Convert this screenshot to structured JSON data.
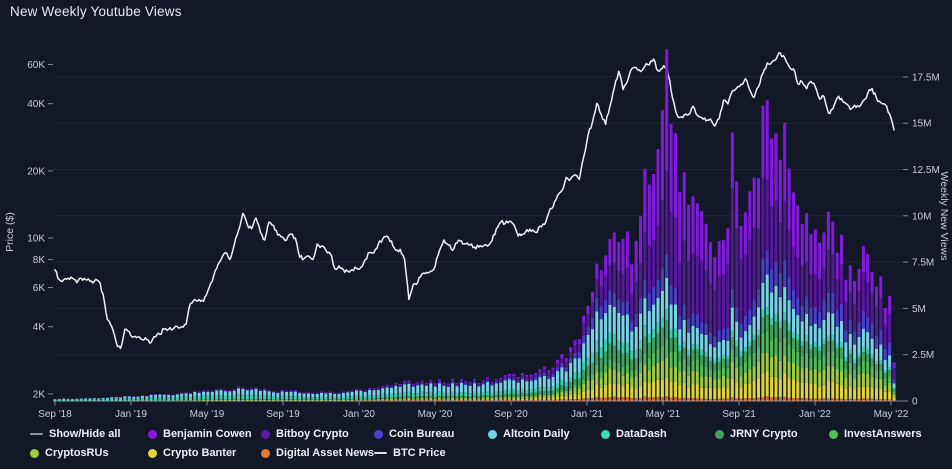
{
  "title": "New Weekly Youtube Views",
  "legend": {
    "rows": [
      [
        {
          "label": "Show/Hide all",
          "swatch": "dash",
          "color": "#8d93a5"
        },
        {
          "label": "Benjamin Cowen",
          "swatch": "dot",
          "color": "#8b15e0"
        },
        {
          "label": "Bitboy Crypto",
          "swatch": "dot",
          "color": "#5a17a5"
        },
        {
          "label": "Coin Bureau",
          "swatch": "dot",
          "color": "#4a3ed2"
        },
        {
          "label": "Altcoin Daily",
          "swatch": "dot",
          "color": "#72d3e8"
        },
        {
          "label": "DataDash",
          "swatch": "dot",
          "color": "#3bd9b5"
        },
        {
          "label": "JRNY Crypto",
          "swatch": "dot",
          "color": "#3fa35a"
        },
        {
          "label": "InvestAnswers",
          "swatch": "dot",
          "color": "#50c055"
        }
      ],
      [
        {
          "label": "CryptosRUs",
          "swatch": "dot",
          "color": "#9ecb3e"
        },
        {
          "label": "Crypto Banter",
          "swatch": "dot",
          "color": "#e2d53c"
        },
        {
          "label": "Digital Asset News",
          "swatch": "dot",
          "color": "#e07b31"
        },
        {
          "label": "BTC Price",
          "swatch": "dash",
          "color": "#dfe2ea"
        }
      ]
    ]
  },
  "chart_data": {
    "type": "combo-stacked-bar-plus-line",
    "title": "New Weekly Youtube Views",
    "x_axis": {
      "ticks": [
        "Sep '18",
        "Jan '19",
        "May '19",
        "Sep '19",
        "Jan '20",
        "May '20",
        "Sep '20",
        "Jan '21",
        "May '21",
        "Sep '21",
        "Jan '22",
        "May '22"
      ],
      "weeks_between_ticks": 17.393,
      "total_weeks": 193
    },
    "left_axis": {
      "title": "Price ($)",
      "scale": "log",
      "tick_labels": [
        "2K",
        "4K",
        "6K",
        "8K",
        "10K",
        "20K",
        "40K",
        "60K"
      ],
      "tick_values_kusd": [
        2,
        4,
        6,
        8,
        10,
        20,
        40,
        60
      ]
    },
    "right_axis": {
      "title": "Weekly New Views",
      "scale": "linear",
      "tick_labels": [
        "0",
        "2.5M",
        "5M",
        "7.5M",
        "10M",
        "12.5M",
        "15M",
        "17.5M"
      ],
      "tick_values_m": [
        0,
        2.5,
        5,
        7.5,
        10,
        12.5,
        15,
        17.5
      ]
    },
    "grid_values_m": [
      2.5,
      5,
      7.5,
      10,
      12.5,
      15,
      17.5
    ],
    "btc_line": {
      "name": "BTC Price",
      "color": "#eef0f5",
      "weekly_kusd": [
        7.2,
        6.5,
        6.5,
        6.6,
        6.6,
        6.3,
        6.6,
        6.5,
        6.4,
        6.4,
        6.4,
        5.6,
        4.3,
        4.0,
        3.4,
        3.2,
        3.9,
        3.8,
        3.6,
        3.6,
        3.5,
        3.5,
        3.4,
        3.6,
        3.7,
        3.9,
        3.9,
        3.9,
        4.0,
        4.0,
        4.1,
        5.1,
        5.3,
        5.3,
        5.2,
        5.8,
        6.4,
        7.3,
        8.0,
        8.6,
        8.0,
        9.3,
        10.8,
        12.9,
        11.5,
        11.0,
        12.3,
        10.6,
        9.8,
        11.8,
        11.4,
        10.3,
        10.1,
        9.8,
        10.4,
        10.0,
        8.2,
        8.1,
        8.3,
        8.0,
        9.4,
        9.2,
        8.8,
        8.5,
        7.3,
        7.5,
        7.2,
        7.1,
        7.2,
        7.3,
        7.4,
        8.0,
        8.6,
        8.6,
        9.4,
        9.9,
        10.2,
        9.7,
        8.8,
        8.9,
        8.0,
        5.3,
        6.2,
        6.3,
        6.9,
        7.0,
        7.1,
        7.5,
        8.8,
        9.8,
        9.3,
        8.8,
        9.5,
        9.7,
        9.4,
        9.3,
        9.1,
        9.1,
        9.2,
        9.2,
        9.7,
        11.0,
        11.8,
        11.6,
        11.9,
        11.5,
        10.2,
        10.4,
        10.9,
        10.7,
        10.6,
        11.3,
        11.5,
        13.0,
        13.8,
        15.5,
        16.3,
        18.7,
        18.4,
        19.2,
        18.3,
        23.1,
        29.0,
        33.1,
        40.2,
        35.8,
        32.3,
        38.9,
        47.2,
        55.9,
        46.3,
        50.4,
        57.4,
        58.1,
        55.8,
        58.9,
        59.8,
        63.5,
        56.2,
        57.8,
        58.9,
        46.0,
        37.3,
        34.7,
        35.7,
        35.8,
        39.0,
        35.5,
        34.7,
        33.5,
        34.2,
        31.8,
        34.3,
        41.5,
        39.9,
        45.6,
        47.1,
        48.9,
        51.8,
        46.1,
        42.7,
        47.7,
        54.7,
        60.9,
        61.3,
        63.3,
        67.6,
        64.4,
        58.7,
        57.3,
        49.2,
        50.1,
        46.7,
        50.4,
        47.7,
        41.9,
        43.1,
        36.4,
        37.9,
        42.4,
        42.2,
        40.1,
        37.7,
        39.4,
        38.8,
        41.3,
        44.5,
        46.8,
        42.3,
        40.4,
        39.7,
        36.0,
        30.5
      ]
    },
    "views_total_m": {
      "keyframe_weeks": [
        0,
        9,
        17,
        26,
        35,
        44,
        52,
        61,
        70,
        80,
        87,
        96,
        104,
        110,
        117,
        120,
        122,
        124,
        126,
        128,
        130,
        132,
        134,
        136,
        138,
        139,
        140,
        141,
        142,
        144,
        146,
        148,
        150,
        152,
        154,
        155,
        156,
        157,
        158,
        160,
        162,
        163,
        164,
        166,
        168,
        170,
        172,
        174,
        175,
        176,
        178,
        180,
        182,
        184,
        186,
        188,
        190,
        191,
        192
      ],
      "values": [
        0.12,
        0.15,
        0.28,
        0.38,
        0.55,
        0.75,
        0.55,
        0.48,
        0.6,
        1.0,
        1.05,
        1.1,
        1.3,
        1.5,
        2.4,
        3.2,
        5.6,
        7.4,
        8.6,
        9.6,
        8.8,
        8.2,
        11.0,
        13.4,
        13.0,
        15.7,
        19.0,
        14.8,
        13.3,
        12.0,
        10.6,
        9.8,
        8.5,
        7.8,
        8.4,
        14.5,
        12.9,
        10.4,
        11.6,
        13.0,
        14.2,
        14.8,
        14.5,
        14.3,
        12.1,
        10.9,
        10.1,
        10.2,
        9.6,
        10.5,
        8.8,
        7.9,
        7.2,
        7.4,
        7.3,
        6.4,
        5.5,
        5.4,
        1.9
      ]
    },
    "stack_order_bottom_to_top": [
      "Digital Asset News",
      "Crypto Banter",
      "CryptosRUs",
      "InvestAnswers",
      "JRNY Crypto",
      "DataDash",
      "Altcoin Daily",
      "Coin Bureau",
      "Bitboy Crypto",
      "Benjamin Cowen"
    ],
    "series_colors": {
      "Digital Asset News": "#d4692f",
      "Crypto Banter": "#e0d43a",
      "CryptosRUs": "#9fcb40",
      "InvestAnswers": "#52bd55",
      "JRNY Crypto": "#3fa35a",
      "DataDash": "#3ecfb2",
      "Altcoin Daily": "#76d2e8",
      "Coin Bureau": "#4a3ecf",
      "Bitboy Crypto": "#56169e",
      "Benjamin Cowen": "#8318e0"
    },
    "channel_share_keyframes": {
      "weeks": [
        0,
        35,
        70,
        104,
        122,
        140,
        155,
        168,
        180,
        192
      ],
      "shares": {
        "Digital Asset News": [
          0.0,
          0.02,
          0.05,
          0.04,
          0.03,
          0.013,
          0.014,
          0.015,
          0.015,
          0.017
        ],
        "Crypto Banter": [
          0.0,
          0.0,
          0.01,
          0.04,
          0.09,
          0.058,
          0.069,
          0.083,
          0.09,
          0.083
        ],
        "CryptosRUs": [
          0.06,
          0.07,
          0.08,
          0.08,
          0.09,
          0.058,
          0.062,
          0.075,
          0.09,
          0.083
        ],
        "InvestAnswers": [
          0.0,
          0.0,
          0.01,
          0.02,
          0.05,
          0.053,
          0.055,
          0.071,
          0.083,
          0.067
        ],
        "JRNY Crypto": [
          0.02,
          0.03,
          0.05,
          0.09,
          0.1,
          0.053,
          0.048,
          0.058,
          0.058,
          0.056
        ],
        "DataDash": [
          0.55,
          0.36,
          0.25,
          0.15,
          0.09,
          0.032,
          0.024,
          0.029,
          0.032,
          0.028
        ],
        "Altcoin Daily": [
          0.33,
          0.4,
          0.4,
          0.37,
          0.22,
          0.089,
          0.083,
          0.108,
          0.122,
          0.111
        ],
        "Coin Bureau": [
          0.0,
          0.02,
          0.04,
          0.08,
          0.1,
          0.066,
          0.069,
          0.092,
          0.109,
          0.111
        ],
        "Bitboy Crypto": [
          0.02,
          0.05,
          0.06,
          0.07,
          0.14,
          0.237,
          0.379,
          0.192,
          0.218,
          0.278
        ],
        "Benjamin Cowen": [
          0.02,
          0.05,
          0.05,
          0.06,
          0.09,
          0.341,
          0.197,
          0.277,
          0.183,
          0.166
        ]
      }
    },
    "colors": {
      "background": "#131827",
      "gridline": "rgba(255,255,255,0.07)",
      "axis_line": "rgba(190,196,214,0.65)",
      "tick_text": "#c9cdd9"
    }
  }
}
